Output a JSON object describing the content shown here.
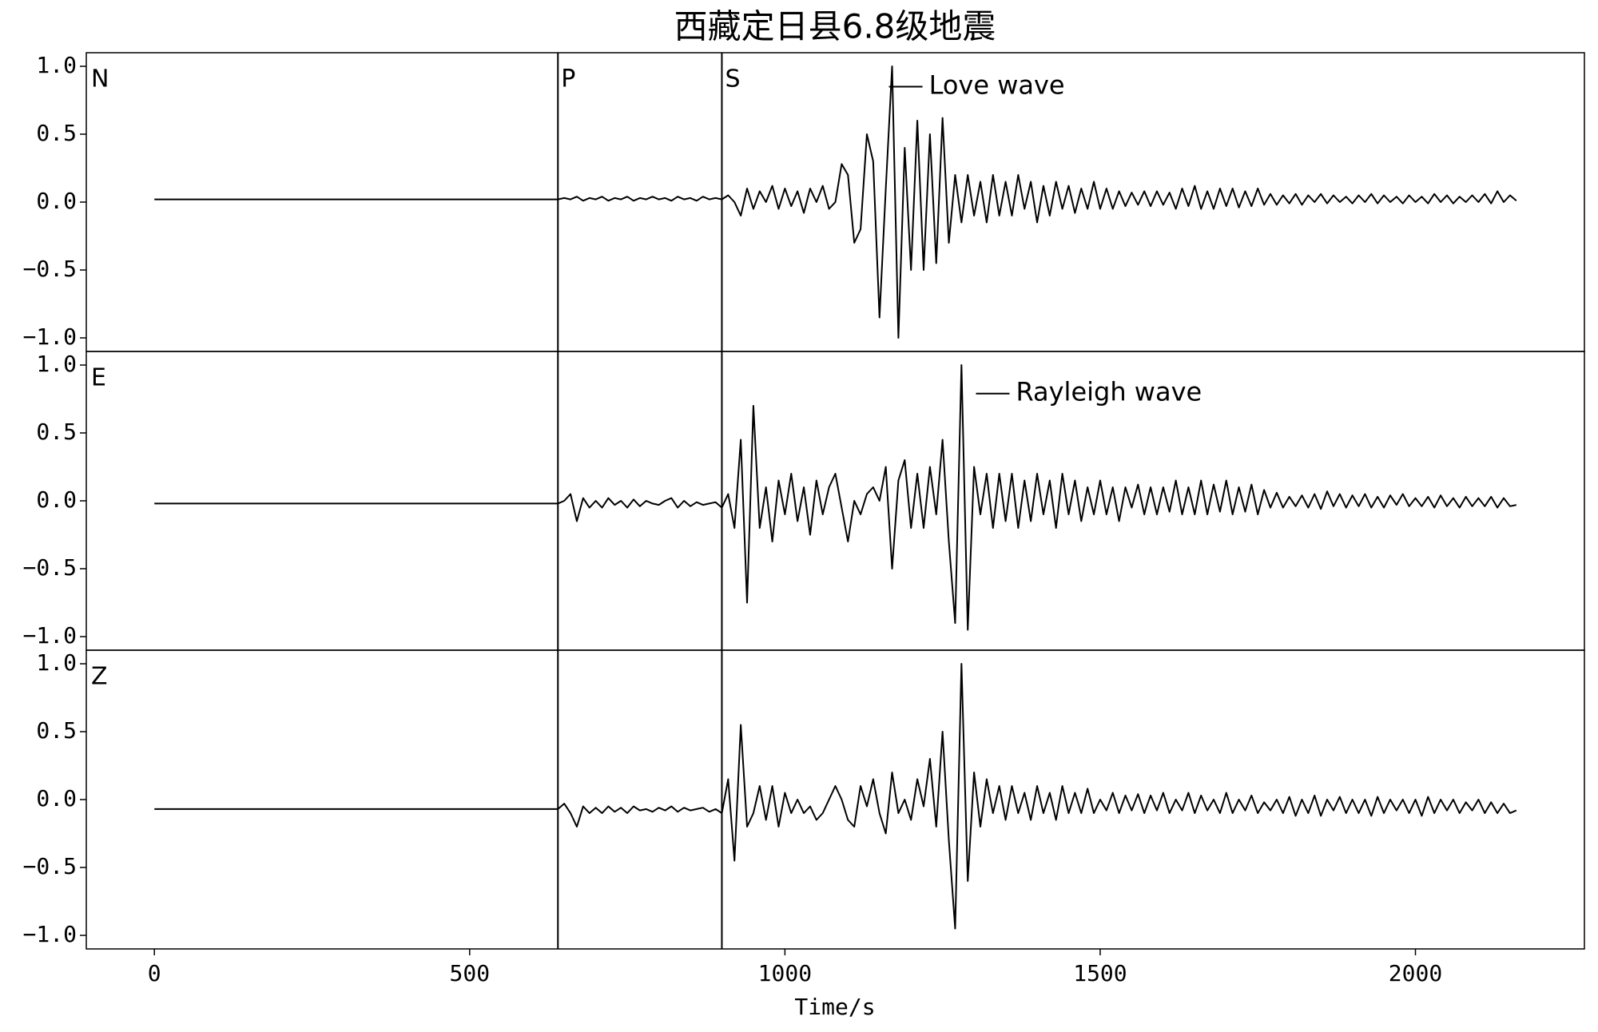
{
  "chart_data": {
    "type": "line",
    "title": "西藏定日县6.8级地震",
    "xlabel": "Time/s",
    "x": [
      0,
      640,
      650,
      660,
      670,
      680,
      690,
      700,
      710,
      720,
      730,
      740,
      750,
      760,
      770,
      780,
      790,
      800,
      810,
      820,
      830,
      840,
      850,
      860,
      870,
      880,
      890,
      900,
      910,
      920,
      930,
      940,
      950,
      960,
      970,
      980,
      990,
      1000,
      1010,
      1020,
      1030,
      1040,
      1050,
      1060,
      1070,
      1080,
      1090,
      1100,
      1110,
      1120,
      1130,
      1140,
      1150,
      1160,
      1170,
      1180,
      1190,
      1200,
      1210,
      1220,
      1230,
      1240,
      1250,
      1260,
      1270,
      1280,
      1290,
      1300,
      1310,
      1320,
      1330,
      1340,
      1350,
      1360,
      1370,
      1380,
      1390,
      1400,
      1410,
      1420,
      1430,
      1440,
      1450,
      1460,
      1470,
      1480,
      1490,
      1500,
      1510,
      1520,
      1530,
      1540,
      1550,
      1560,
      1570,
      1580,
      1590,
      1600,
      1610,
      1620,
      1630,
      1640,
      1650,
      1660,
      1670,
      1680,
      1690,
      1700,
      1710,
      1720,
      1730,
      1740,
      1750,
      1760,
      1770,
      1780,
      1790,
      1800,
      1810,
      1820,
      1830,
      1840,
      1850,
      1860,
      1870,
      1880,
      1890,
      1900,
      1910,
      1920,
      1930,
      1940,
      1950,
      1960,
      1970,
      1980,
      1990,
      2000,
      2010,
      2020,
      2030,
      2040,
      2050,
      2060,
      2070,
      2080,
      2090,
      2100,
      2110,
      2120,
      2130,
      2140,
      2150,
      2160
    ],
    "xlim": [
      -108,
      2268
    ],
    "xticks": [
      0,
      500,
      1000,
      1500,
      2000
    ],
    "ylim": [
      -1.1,
      1.1
    ],
    "yticks": [
      {
        "value": 1,
        "label": "1.0"
      },
      0.5,
      {
        "value": 0,
        "label": "0.0"
      },
      {
        "value": -0.5,
        "label": "−0.5"
      },
      {
        "value": -1,
        "label": "−1.0"
      }
    ],
    "markers": [
      {
        "label": "P",
        "x": 640
      },
      {
        "label": "S",
        "x": 900
      }
    ],
    "series": [
      {
        "name": "N",
        "color": "#000000",
        "annotation": {
          "text": "Love wave",
          "x": 1165,
          "y": 0.85
        },
        "values": [
          0.02,
          0.02,
          0.03,
          0.02,
          0.04,
          0.01,
          0.03,
          0.02,
          0.04,
          0.01,
          0.03,
          0.02,
          0.04,
          0.01,
          0.03,
          0.02,
          0.04,
          0.02,
          0.03,
          0.01,
          0.04,
          0.02,
          0.03,
          0.01,
          0.04,
          0.02,
          0.03,
          0.02,
          0.05,
          0.0,
          -0.1,
          0.1,
          -0.05,
          0.08,
          0.0,
          0.12,
          -0.05,
          0.1,
          -0.03,
          0.08,
          -0.08,
          0.1,
          0.0,
          0.12,
          -0.05,
          0.0,
          0.28,
          0.2,
          -0.3,
          -0.2,
          0.5,
          0.3,
          -0.85,
          0.1,
          1.0,
          -1.0,
          0.4,
          -0.5,
          0.6,
          -0.5,
          0.5,
          -0.45,
          0.62,
          -0.3,
          0.2,
          -0.15,
          0.2,
          -0.1,
          0.15,
          -0.15,
          0.2,
          -0.1,
          0.15,
          -0.1,
          0.2,
          -0.05,
          0.15,
          -0.15,
          0.12,
          -0.1,
          0.15,
          -0.05,
          0.12,
          -0.08,
          0.1,
          -0.05,
          0.15,
          -0.05,
          0.1,
          -0.05,
          0.08,
          -0.03,
          0.07,
          -0.02,
          0.08,
          -0.03,
          0.08,
          -0.02,
          0.07,
          -0.05,
          0.1,
          -0.03,
          0.12,
          -0.05,
          0.08,
          -0.05,
          0.1,
          -0.03,
          0.1,
          -0.04,
          0.08,
          -0.03,
          0.1,
          -0.02,
          0.06,
          -0.02,
          0.05,
          -0.01,
          0.06,
          -0.02,
          0.05,
          0.0,
          0.06,
          -0.01,
          0.05,
          0.0,
          0.04,
          -0.01,
          0.05,
          0.0,
          0.06,
          -0.01,
          0.05,
          0.0,
          0.04,
          -0.01,
          0.05,
          0.0,
          0.04,
          -0.01,
          0.06,
          0.0,
          0.05,
          -0.01,
          0.04,
          0.0,
          0.05,
          0.0,
          0.06,
          -0.01,
          0.08,
          0.0,
          0.05,
          0.01
        ]
      },
      {
        "name": "E",
        "color": "#000000",
        "annotation": {
          "text": "Rayleigh wave",
          "x": 1303,
          "y": 0.79
        },
        "values": [
          -0.02,
          -0.02,
          0.0,
          0.05,
          -0.15,
          0.02,
          -0.05,
          0.0,
          -0.05,
          0.02,
          -0.03,
          0.0,
          -0.05,
          0.01,
          -0.04,
          0.0,
          -0.02,
          -0.03,
          0.0,
          0.02,
          -0.05,
          0.0,
          -0.04,
          -0.01,
          -0.03,
          -0.02,
          -0.01,
          -0.05,
          0.05,
          -0.2,
          0.45,
          -0.75,
          0.7,
          -0.2,
          0.1,
          -0.3,
          0.15,
          -0.1,
          0.2,
          -0.15,
          0.1,
          -0.25,
          0.15,
          -0.1,
          0.1,
          0.2,
          -0.05,
          -0.3,
          0.0,
          -0.1,
          0.05,
          0.1,
          0.0,
          0.25,
          -0.5,
          0.15,
          0.3,
          -0.2,
          0.2,
          -0.2,
          0.25,
          -0.1,
          0.45,
          -0.3,
          -0.9,
          1.0,
          -0.95,
          0.25,
          -0.1,
          0.2,
          -0.2,
          0.2,
          -0.15,
          0.2,
          -0.2,
          0.15,
          -0.15,
          0.2,
          -0.1,
          0.15,
          -0.2,
          0.2,
          -0.1,
          0.15,
          -0.15,
          0.1,
          -0.1,
          0.15,
          -0.1,
          0.1,
          -0.15,
          0.1,
          -0.05,
          0.12,
          -0.1,
          0.1,
          -0.1,
          0.1,
          -0.08,
          0.15,
          -0.1,
          0.1,
          -0.1,
          0.15,
          -0.1,
          0.12,
          -0.08,
          0.15,
          -0.1,
          0.1,
          -0.08,
          0.12,
          -0.1,
          0.08,
          -0.05,
          0.06,
          -0.05,
          0.03,
          -0.04,
          0.04,
          -0.05,
          0.05,
          -0.06,
          0.07,
          -0.04,
          0.05,
          -0.05,
          0.04,
          -0.04,
          0.05,
          -0.05,
          0.03,
          -0.05,
          0.04,
          -0.03,
          0.05,
          -0.04,
          0.02,
          -0.04,
          0.03,
          -0.05,
          0.04,
          -0.04,
          0.02,
          -0.05,
          0.03,
          -0.04,
          0.02,
          -0.04,
          0.03,
          -0.05,
          0.02,
          -0.04,
          -0.03
        ]
      },
      {
        "name": "Z",
        "color": "#000000",
        "values": [
          -0.07,
          -0.07,
          -0.03,
          -0.1,
          -0.2,
          -0.05,
          -0.1,
          -0.06,
          -0.1,
          -0.05,
          -0.09,
          -0.06,
          -0.1,
          -0.05,
          -0.08,
          -0.07,
          -0.09,
          -0.06,
          -0.08,
          -0.05,
          -0.09,
          -0.06,
          -0.08,
          -0.07,
          -0.06,
          -0.09,
          -0.07,
          -0.1,
          0.15,
          -0.45,
          0.55,
          -0.2,
          -0.1,
          0.1,
          -0.15,
          0.1,
          -0.2,
          0.05,
          -0.1,
          0.0,
          -0.1,
          -0.05,
          -0.15,
          -0.1,
          0.0,
          0.1,
          0.0,
          -0.15,
          -0.2,
          0.1,
          -0.05,
          0.15,
          -0.1,
          -0.25,
          0.2,
          -0.1,
          0.0,
          -0.15,
          0.15,
          -0.05,
          0.3,
          -0.2,
          0.5,
          -0.3,
          -0.95,
          1.0,
          -0.6,
          0.2,
          -0.2,
          0.15,
          -0.1,
          0.1,
          -0.15,
          0.1,
          -0.1,
          0.05,
          -0.15,
          0.1,
          -0.1,
          0.05,
          -0.15,
          0.1,
          -0.1,
          0.05,
          -0.1,
          0.08,
          -0.1,
          0.0,
          -0.08,
          0.05,
          -0.1,
          0.03,
          -0.08,
          0.04,
          -0.1,
          0.03,
          -0.08,
          0.05,
          -0.1,
          0.0,
          -0.08,
          0.05,
          -0.1,
          0.03,
          -0.08,
          0.0,
          -0.1,
          0.05,
          -0.1,
          0.0,
          -0.08,
          0.03,
          -0.1,
          -0.02,
          -0.08,
          0.0,
          -0.1,
          0.02,
          -0.12,
          0.0,
          -0.1,
          0.03,
          -0.12,
          0.0,
          -0.08,
          0.02,
          -0.1,
          0.0,
          -0.1,
          0.0,
          -0.12,
          0.02,
          -0.1,
          0.0,
          -0.08,
          0.0,
          -0.1,
          0.0,
          -0.12,
          0.02,
          -0.1,
          0.0,
          -0.08,
          0.0,
          -0.1,
          -0.02,
          -0.08,
          0.0,
          -0.1,
          -0.02,
          -0.1,
          -0.03,
          -0.1,
          -0.08
        ]
      }
    ]
  }
}
